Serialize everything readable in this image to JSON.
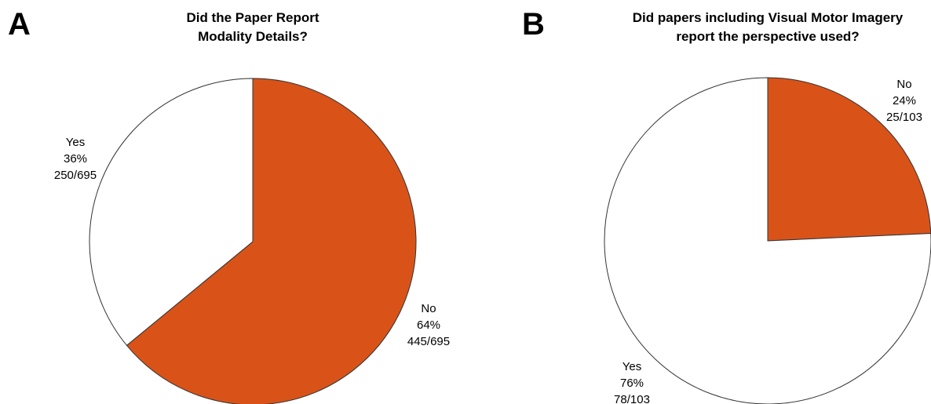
{
  "colors": {
    "no": "#D95319",
    "yes": "#FFFFFF"
  },
  "chart_data": [
    {
      "type": "pie",
      "panel": "A",
      "title_lines": [
        "Did the Paper Report",
        "Modality Details?"
      ],
      "slices": [
        {
          "label": "No",
          "percent": "64%",
          "count": "445/695",
          "value": 445,
          "color": "#D95319"
        },
        {
          "label": "Yes",
          "percent": "36%",
          "count": "250/695",
          "value": 250,
          "color": "#FFFFFF"
        }
      ],
      "total": 695
    },
    {
      "type": "pie",
      "panel": "B",
      "title_lines": [
        "Did papers including Visual Motor Imagery",
        "report the perspective used?"
      ],
      "slices": [
        {
          "label": "No",
          "percent": "24%",
          "count": "25/103",
          "value": 25,
          "color": "#D95319"
        },
        {
          "label": "Yes",
          "percent": "76%",
          "count": "78/103",
          "value": 78,
          "color": "#FFFFFF"
        }
      ],
      "total": 103
    }
  ]
}
